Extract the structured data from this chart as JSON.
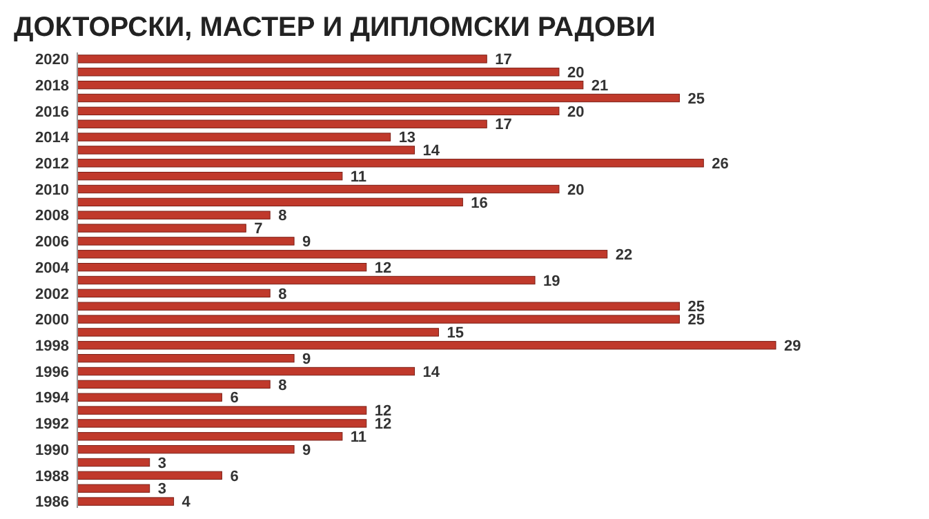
{
  "chart_data": {
    "type": "bar",
    "orientation": "horizontal",
    "title": "ДОКТОРСКИ, МАСТЕР И ДИПЛОМСКИ РАДОВИ",
    "categories": [
      "2020",
      null,
      "2018",
      null,
      "2016",
      null,
      "2014",
      null,
      "2012",
      null,
      "2010",
      null,
      "2008",
      null,
      "2006",
      null,
      "2004",
      null,
      "2002",
      null,
      "2000",
      null,
      "1998",
      null,
      "1996",
      null,
      "1994",
      null,
      "1992",
      null,
      "1990",
      null,
      "1988",
      null,
      "1986"
    ],
    "values": [
      17,
      20,
      21,
      25,
      20,
      17,
      13,
      14,
      26,
      11,
      20,
      16,
      8,
      7,
      9,
      22,
      12,
      19,
      8,
      25,
      25,
      15,
      29,
      9,
      14,
      8,
      6,
      12,
      12,
      11,
      9,
      3,
      6,
      3,
      4
    ],
    "color": "#c0392b",
    "data_labels": true
  }
}
